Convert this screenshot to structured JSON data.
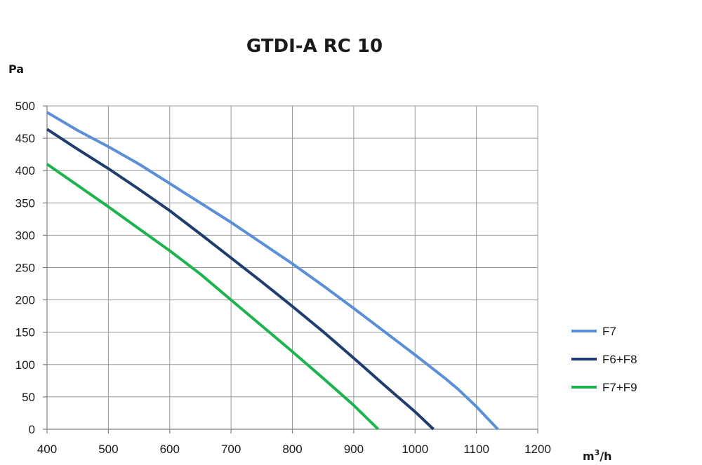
{
  "chart_data": {
    "type": "line",
    "title": "GTDI-A RC 10",
    "ylabel": "Pa",
    "xlabel_base": "m",
    "xlabel_sup": "3",
    "xlabel_tail": "/h",
    "xlim": [
      400,
      1200
    ],
    "ylim": [
      0,
      500
    ],
    "xticks": [
      400,
      500,
      600,
      700,
      800,
      900,
      1000,
      1100,
      1200
    ],
    "yticks": [
      0,
      50,
      100,
      150,
      200,
      250,
      300,
      350,
      400,
      450,
      500
    ],
    "grid": true,
    "legend": "right",
    "series": [
      {
        "name": "F7",
        "color": "#5b8fd6",
        "points": [
          [
            400,
            490
          ],
          [
            450,
            462
          ],
          [
            500,
            437
          ],
          [
            550,
            410
          ],
          [
            600,
            380
          ],
          [
            650,
            350
          ],
          [
            700,
            320
          ],
          [
            750,
            288
          ],
          [
            800,
            256
          ],
          [
            850,
            222
          ],
          [
            900,
            187
          ],
          [
            950,
            151
          ],
          [
            1000,
            115
          ],
          [
            1050,
            78
          ],
          [
            1070,
            62
          ],
          [
            1100,
            35
          ],
          [
            1120,
            15
          ],
          [
            1135,
            0
          ]
        ]
      },
      {
        "name": "F6+F8",
        "color": "#1f3d6e",
        "points": [
          [
            400,
            464
          ],
          [
            450,
            433
          ],
          [
            500,
            403
          ],
          [
            550,
            371
          ],
          [
            600,
            338
          ],
          [
            650,
            302
          ],
          [
            700,
            265
          ],
          [
            750,
            228
          ],
          [
            800,
            190
          ],
          [
            850,
            151
          ],
          [
            900,
            110
          ],
          [
            950,
            68
          ],
          [
            1000,
            27
          ],
          [
            1030,
            0
          ]
        ]
      },
      {
        "name": "F7+F9",
        "color": "#1db34f",
        "points": [
          [
            400,
            410
          ],
          [
            450,
            377
          ],
          [
            500,
            344
          ],
          [
            550,
            310
          ],
          [
            600,
            276
          ],
          [
            650,
            240
          ],
          [
            700,
            200
          ],
          [
            750,
            160
          ],
          [
            800,
            120
          ],
          [
            850,
            79
          ],
          [
            900,
            37
          ],
          [
            940,
            0
          ]
        ]
      }
    ]
  }
}
